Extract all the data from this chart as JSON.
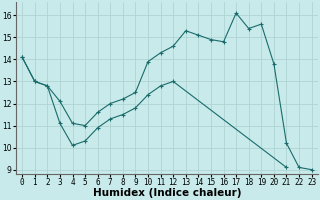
{
  "xlabel": "Humidex (Indice chaleur)",
  "ylabel": "",
  "background_color": "#c8eaea",
  "grid_color": "#afd4d4",
  "line_color": "#1a6b6b",
  "xlim": [
    -0.5,
    23.5
  ],
  "ylim": [
    8.8,
    16.6
  ],
  "xticks": [
    0,
    1,
    2,
    3,
    4,
    5,
    6,
    7,
    8,
    9,
    10,
    11,
    12,
    13,
    14,
    15,
    16,
    17,
    18,
    19,
    20,
    21,
    22,
    23
  ],
  "yticks": [
    9,
    10,
    11,
    12,
    13,
    14,
    15,
    16
  ],
  "line1_x": [
    0,
    1,
    2,
    3,
    4,
    5,
    6,
    7,
    8,
    9,
    10,
    11,
    12,
    13,
    14,
    15,
    16,
    17,
    18,
    19,
    20,
    21,
    22,
    23
  ],
  "line1_y": [
    14.1,
    13.0,
    12.8,
    12.1,
    11.1,
    11.0,
    11.6,
    12.0,
    12.2,
    12.5,
    13.9,
    14.3,
    14.6,
    15.3,
    15.1,
    14.9,
    14.8,
    16.1,
    15.4,
    15.6,
    13.8,
    10.2,
    9.1,
    9.0
  ],
  "line2_x": [
    0,
    1,
    2,
    3,
    4,
    5,
    6,
    7,
    8,
    9,
    10,
    11,
    12,
    21
  ],
  "line2_y": [
    14.1,
    13.0,
    12.8,
    11.1,
    10.1,
    10.3,
    10.9,
    11.3,
    11.5,
    11.8,
    12.4,
    12.8,
    13.0,
    9.1
  ],
  "tick_fontsize": 5.5,
  "xlabel_fontsize": 7.5
}
